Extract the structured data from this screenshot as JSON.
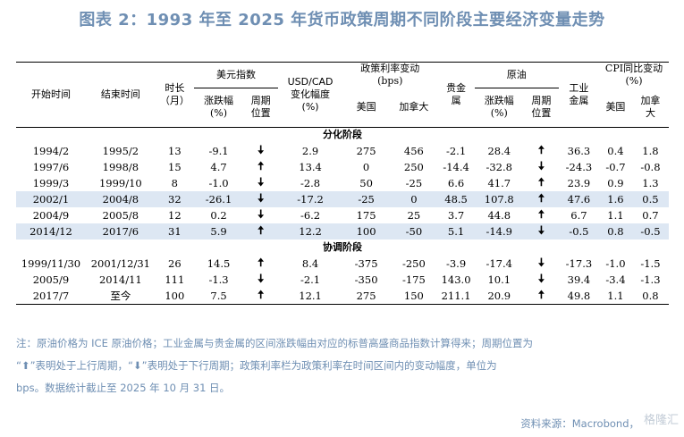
{
  "title": "图表 2：1993 年至 2025 年货币政策周期不同阶段主要经济变量走势",
  "headers": {
    "start": "开始时间",
    "end": "结束时间",
    "duration": "时长（月）",
    "usd_index": "美元指数",
    "usd_change": "涨跌幅（%）",
    "usd_cycle": "周期位置",
    "usdcad": "USD/CAD 变化幅度（%）",
    "policy_rate": "政策利率变动（bps）",
    "policy_us": "美国",
    "policy_ca": "加拿大",
    "precious": "贵金属",
    "oil": "原油",
    "oil_change": "涨跌幅（%）",
    "oil_cycle": "周期位置",
    "industrial": "工业金属",
    "cpi": "CPI 同比变动（%）",
    "cpi_us": "美国",
    "cpi_ca": "加拿大"
  },
  "sections": [
    {
      "label": "分化阶段",
      "rows": [
        {
          "start": "1994/2",
          "end": "1995/2",
          "dur": "13",
          "usd": "-9.1",
          "usd_dir": "down",
          "cad": "2.9",
          "r_us": "275",
          "r_ca": "456",
          "prec": "-2.1",
          "oil": "28.4",
          "oil_dir": "up",
          "ind": "36.3",
          "cpi_us": "0.4",
          "cpi_ca": "1.8",
          "hl": false
        },
        {
          "start": "1997/6",
          "end": "1998/8",
          "dur": "15",
          "usd": "4.7",
          "usd_dir": "up",
          "cad": "13.4",
          "r_us": "0",
          "r_ca": "250",
          "prec": "-14.4",
          "oil": "-32.8",
          "oil_dir": "down",
          "ind": "-24.3",
          "cpi_us": "-0.7",
          "cpi_ca": "-0.8",
          "hl": false
        },
        {
          "start": "1999/3",
          "end": "1999/10",
          "dur": "8",
          "usd": "-1.0",
          "usd_dir": "down",
          "cad": "-2.8",
          "r_us": "50",
          "r_ca": "-25",
          "prec": "6.6",
          "oil": "41.7",
          "oil_dir": "up",
          "ind": "23.9",
          "cpi_us": "0.9",
          "cpi_ca": "1.3",
          "hl": false
        },
        {
          "start": "2002/1",
          "end": "2004/8",
          "dur": "32",
          "usd": "-26.1",
          "usd_dir": "down",
          "cad": "-17.2",
          "r_us": "-25",
          "r_ca": "0",
          "prec": "48.5",
          "oil": "107.8",
          "oil_dir": "up",
          "ind": "47.6",
          "cpi_us": "1.6",
          "cpi_ca": "0.5",
          "hl": true
        },
        {
          "start": "2004/9",
          "end": "2005/8",
          "dur": "12",
          "usd": "0.2",
          "usd_dir": "down",
          "cad": "-6.2",
          "r_us": "175",
          "r_ca": "25",
          "prec": "3.7",
          "oil": "44.8",
          "oil_dir": "up",
          "ind": "6.7",
          "cpi_us": "1.1",
          "cpi_ca": "0.7",
          "hl": false
        },
        {
          "start": "2014/12",
          "end": "2017/6",
          "dur": "31",
          "usd": "5.9",
          "usd_dir": "up",
          "cad": "12.2",
          "r_us": "100",
          "r_ca": "-50",
          "prec": "5.1",
          "oil": "-14.9",
          "oil_dir": "down",
          "ind": "-0.5",
          "cpi_us": "0.8",
          "cpi_ca": "-0.5",
          "hl": true
        }
      ]
    },
    {
      "label": "协调阶段",
      "rows": [
        {
          "start": "1999/11/30",
          "end": "2001/12/31",
          "dur": "26",
          "usd": "14.5",
          "usd_dir": "up",
          "cad": "8.4",
          "r_us": "-375",
          "r_ca": "-250",
          "prec": "-3.9",
          "oil": "-17.4",
          "oil_dir": "down",
          "ind": "-17.3",
          "cpi_us": "-1.0",
          "cpi_ca": "-1.5",
          "hl": false
        },
        {
          "start": "2005/9",
          "end": "2014/11",
          "dur": "111",
          "usd": "-1.3",
          "usd_dir": "down",
          "cad": "-2.1",
          "r_us": "-350",
          "r_ca": "-175",
          "prec": "143.0",
          "oil": "10.1",
          "oil_dir": "down",
          "ind": "39.4",
          "cpi_us": "-3.4",
          "cpi_ca": "-1.3",
          "hl": false
        },
        {
          "start": "2017/7",
          "end": "至今",
          "dur": "100",
          "usd": "7.5",
          "usd_dir": "up",
          "cad": "12.1",
          "r_us": "275",
          "r_ca": "150",
          "prec": "211.1",
          "oil": "20.9",
          "oil_dir": "up",
          "ind": "49.8",
          "cpi_us": "1.1",
          "cpi_ca": "0.8",
          "hl": false
        }
      ]
    }
  ],
  "arrows": {
    "up": "🠅",
    "down": "🠇"
  },
  "note_lines": [
    "注：原油价格为 ICE 原油价格；工业金属与贵金属的区间涨跌幅由对应的标普高盛商品指数计算得来；周期位置为",
    "“⬆”表明处于上行周期，“⬇”表明处于下行周期；政策利率栏为政策利率在时间区间内的变动幅度，单位为",
    "bps。数据统计截止至 2025 年 10 月 31 日。"
  ],
  "source": "资料来源：Macrobond，",
  "watermark": "格隆汇"
}
